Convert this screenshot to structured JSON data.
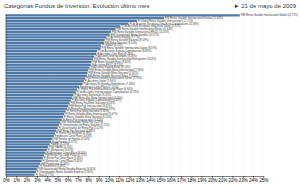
{
  "chart_data": {
    "type": "bar",
    "orientation": "horizontal",
    "title": "Categorías Fondos de Inversión: Evolución último mes",
    "annotations": [
      "► 21 de mayo de 2009"
    ],
    "categories": [
      "FIM Renta Variable Internacional Global (22.71%)",
      "FIM Renta Variable Internacional Europa (15.33%)",
      "FI Global Renta Variable Internacional (12.71%)",
      "FI de Acciones Europeas Zona Euro Capitalizacion (11.89%)",
      "FI de Acciones Europeas zona Euro Value (11.11%)",
      "FIM Renta Variable Internacional Resto (10.64%)",
      "FIM Renta Variable Internacional EEUU (10.20%)",
      "FIM Garantizado Renta Variable (10.07%)",
      "FI Acciones Europa (9.77%)",
      "FIM Renta Variable Nacional (9.59%)",
      "FIM Bolsa Nacional (9.50%)",
      "FI Global (9.25%)",
      "FIM Renta Variable Internacional Japon (9.19%)",
      "FI de Acciones Espana Capitalizacion (8.85%)",
      "FI Acciones Zona Euro (8.76%)",
      "FI Acciones Internacionales (8.56%)",
      "FIM Renta Variable Internacional Emergentes (8.44%)",
      "FIM Renta Variable Euro (8.30%)",
      "FI Acciones EEUU (8.23%)",
      "FI Acciones Espana Value (8.10%)",
      "FIM Renta Variable Mixta Internacional (7.99%)",
      "FIM Renta Variable Mixta Nacional (7.91%)",
      "FIM Renta Variable Nacional Bolsa (7.85%)",
      "FIM Renta Variable Internacional Sector (7.70%)",
      "FI Acciones Japon (7.56%)",
      "FI Acciones Economias Emergentes (7.43%)",
      "Fondtesoro Largo Plazo (7.10%)",
      "FI Renta Fija Internacional Largo Plazo (6.90%)",
      "FI de Acciones Internacionales Capitalizacion (6.78%)",
      "FI Acciones Sectoriales (6.55%)",
      "FIM Renta Fija Mixta Internacional (6.44%)",
      "FI Acciones Espana Capitalizacion (6.30%)",
      "FIM Renta Fija Mixta Nacional (6.18%)",
      "FIM Renta Fija Internacional (6.05%)",
      "FI Renta Fija Mixta Internacional (5.92%)",
      "FI Renta Fija Mixta Nacional (5.80%)",
      "FI Renta Variable Mixta Internacional (5.67%)",
      "FI Renta Variable Mixta Nacional (5.54%)",
      "FI Renta Fija Internacional (5.41%)",
      "FIM Garantizado Renta Fija (5.29%)",
      "FI Garantizados de Renta Variable (5.15%)",
      "FI Garantizados de Renta Fija (5.02%)",
      "FIM Renta Fija Nacional (4.89%)",
      "FI Renta Fija Nacional (4.76%)",
      "Fondtesoro Corto Plazo (4.63%)",
      "FIM Fondos de Fondos (4.50%)",
      "FI de Fondos (4.37%)",
      "FIAMM (4.24%)",
      "FIM FIAMM (4.10%)",
      "FI Monetarios (3.97%)",
      "FI Monetarios Largo Plazo (3.84%)",
      "FIM Renta Fija Corto Plazo (3.71%)",
      "FI Renta Fija Corto Plazo (3.58%)",
      "FI Monetarios Corto Plazo (3.45%)",
      "FIM Fondtesoro (3.32%)",
      "FI Fondtesoro (3.18%)",
      "FIM Garantizado Renta Variable Especial (3.05%)",
      "FI Garantizados Renta Variable Especial (2.90%)",
      "FI Total (2.77%)"
    ],
    "values": [
      22.71,
      15.33,
      12.71,
      11.89,
      11.11,
      10.64,
      10.2,
      10.07,
      9.77,
      9.59,
      9.5,
      9.25,
      9.19,
      8.85,
      8.76,
      8.56,
      8.44,
      8.3,
      8.23,
      8.1,
      7.99,
      7.91,
      7.85,
      7.7,
      7.56,
      7.43,
      7.1,
      6.9,
      6.78,
      6.55,
      6.44,
      6.3,
      6.18,
      6.05,
      5.92,
      5.8,
      5.67,
      5.54,
      5.41,
      5.29,
      5.15,
      5.02,
      4.89,
      4.76,
      4.63,
      4.5,
      4.37,
      4.24,
      4.1,
      3.97,
      3.84,
      3.71,
      3.58,
      3.45,
      3.32,
      3.18,
      3.05,
      2.9,
      2.77
    ],
    "xlim": [
      0,
      25
    ],
    "xticks": [
      {
        "value": 0,
        "label": "0%"
      },
      {
        "value": 1,
        "label": "1%"
      },
      {
        "value": 2,
        "label": "2%"
      },
      {
        "value": 3,
        "label": "3%"
      },
      {
        "value": 4,
        "label": "4%"
      },
      {
        "value": 5,
        "label": "5%"
      },
      {
        "value": 6,
        "label": "6%"
      },
      {
        "value": 7,
        "label": "7%"
      },
      {
        "value": 8,
        "label": "8%"
      },
      {
        "value": 9,
        "label": "9%"
      },
      {
        "value": 10,
        "label": "10%"
      },
      {
        "value": 11,
        "label": "11%"
      },
      {
        "value": 12,
        "label": "12%"
      },
      {
        "value": 13,
        "label": "13%"
      },
      {
        "value": 14,
        "label": "14%"
      },
      {
        "value": 15,
        "label": "15%"
      },
      {
        "value": 16,
        "label": "16%"
      },
      {
        "value": 17,
        "label": "17%"
      },
      {
        "value": 18,
        "label": "18%"
      },
      {
        "value": 19,
        "label": "19%"
      },
      {
        "value": 20,
        "label": "20%"
      },
      {
        "value": 21,
        "label": "21%"
      },
      {
        "value": 22,
        "label": "22%"
      },
      {
        "value": 23,
        "label": "23%"
      },
      {
        "value": 24,
        "label": "24%"
      },
      {
        "value": 25,
        "label": "25%"
      }
    ],
    "grid": true,
    "tick_labels": "x"
  }
}
